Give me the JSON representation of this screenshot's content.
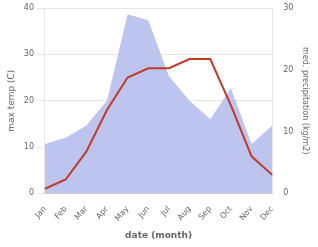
{
  "chart_data": {
    "type": "line",
    "xlabel": "date (month)",
    "ylabel": "max temp (C)",
    "y2label": "med. precipitation (kg/m2)",
    "categories": [
      "Jan",
      "Feb",
      "Mar",
      "Apr",
      "May",
      "Jun",
      "Jul",
      "Aug",
      "Sep",
      "Oct",
      "Nov",
      "Dec"
    ],
    "series": [
      {
        "type": "area",
        "color": "#bdc5ee",
        "axis": "y2",
        "values": [
          8,
          9,
          11,
          15,
          29,
          28,
          19,
          15,
          12,
          17,
          8,
          11
        ]
      },
      {
        "type": "line",
        "color": "#c0392b",
        "values": [
          1,
          3,
          9,
          18,
          25,
          27,
          27,
          29,
          29,
          19,
          8,
          4
        ]
      }
    ],
    "ylim": [
      0,
      40
    ],
    "yticks": [
      0,
      10,
      20,
      30,
      40
    ],
    "y2lim": [
      0,
      30
    ],
    "y2ticks": [
      0,
      10,
      20,
      30
    ],
    "grid": true
  }
}
